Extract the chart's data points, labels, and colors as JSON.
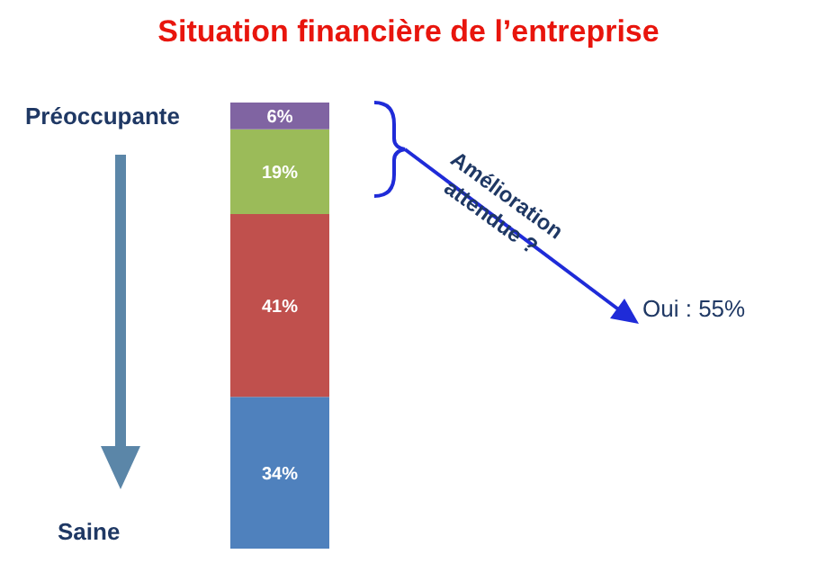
{
  "chart_data": {
    "type": "bar",
    "title": "Situation financière de l’entreprise",
    "categories": [
      null
    ],
    "stacked": true,
    "series": [
      {
        "color": "#4f81bd",
        "values": [
          34
        ],
        "value_labels": [
          "34%"
        ]
      },
      {
        "color": "#c0504d",
        "values": [
          41
        ],
        "value_labels": [
          "41%"
        ]
      },
      {
        "color": "#9bbb59",
        "values": [
          19
        ],
        "value_labels": [
          "19%"
        ]
      },
      {
        "color": "#8064a2",
        "values": [
          6
        ],
        "value_labels": [
          "6%"
        ]
      }
    ],
    "annotations": [
      "Préoccupante",
      "Saine",
      "Amélioration attendue ?",
      "Oui : 55%"
    ],
    "legend": false,
    "grid": false
  }
}
